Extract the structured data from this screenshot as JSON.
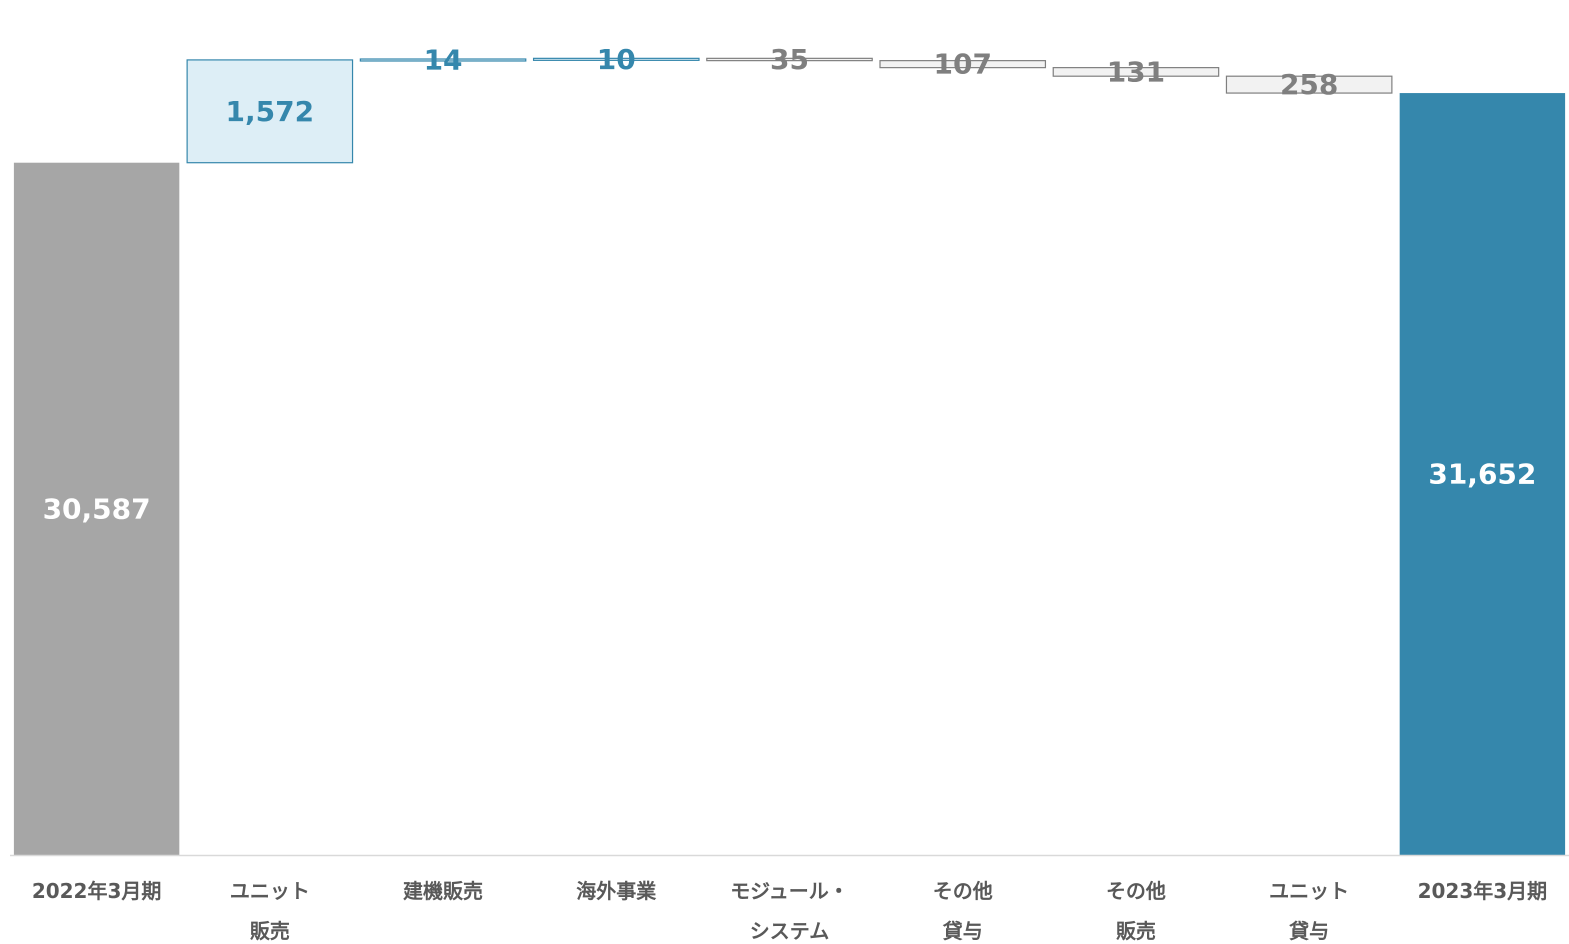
{
  "chart_data": {
    "type": "bar",
    "subtype": "waterfall",
    "categories": [
      [
        "2022年3月期"
      ],
      [
        "ユニット",
        "販売"
      ],
      [
        "建機販売"
      ],
      [
        "海外事業"
      ],
      [
        "モジュール・",
        "システム"
      ],
      [
        "その他",
        "貸与"
      ],
      [
        "その他",
        "販売"
      ],
      [
        "ユニット",
        "貸与"
      ],
      [
        "2023年3月期"
      ]
    ],
    "values": [
      30587,
      1572,
      14,
      10,
      -35,
      -107,
      -131,
      -258,
      31652
    ],
    "value_labels": [
      "30,587",
      "1,572",
      "14",
      "10",
      "35",
      "107",
      "131",
      "258",
      "31,652"
    ],
    "kinds": [
      "total",
      "increase",
      "increase",
      "increase",
      "decrease",
      "decrease",
      "decrease",
      "decrease",
      "total"
    ],
    "ylim": [
      20000,
      32800
    ],
    "colors": {
      "start_total": "#a6a6a6",
      "end_total": "#3587ac",
      "increase_fill": "#ddeef6",
      "increase_stroke": "#3587ac",
      "decrease_fill": "#f2f2f2",
      "decrease_stroke": "#7f7f7f",
      "increase_label": "#3587ac",
      "decrease_label": "#7f7f7f",
      "total_label": "#ffffff",
      "axis": "#d9d9d9",
      "category_label": "#595959"
    }
  }
}
